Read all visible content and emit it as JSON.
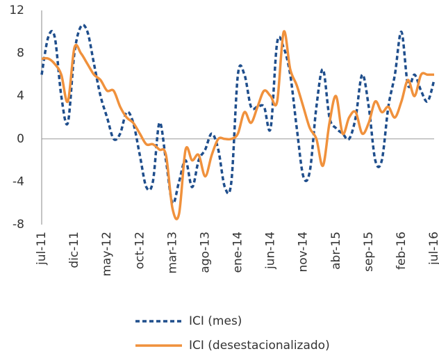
{
  "chart_data": {
    "type": "line",
    "categories": [
      "jul-11",
      null,
      null,
      null,
      null,
      "dic-11",
      null,
      null,
      null,
      null,
      "may-12",
      null,
      null,
      null,
      null,
      "oct-12",
      null,
      null,
      null,
      null,
      "mar-13",
      null,
      null,
      null,
      null,
      "ago-13",
      null,
      null,
      null,
      null,
      "ene-14",
      null,
      null,
      null,
      null,
      "jun-14",
      null,
      null,
      null,
      null,
      "nov-14",
      null,
      null,
      null,
      null,
      "abr-15",
      null,
      null,
      null,
      null,
      "sep-15",
      null,
      null,
      null,
      null,
      "feb-16",
      null,
      null,
      null,
      null,
      "jul-16"
    ],
    "series": [
      {
        "name": "ICI (mes)",
        "color": "#1f4e8c",
        "dashed": true,
        "values": [
          6,
          9.5,
          9.5,
          4,
          1.5,
          8,
          10.5,
          10,
          7,
          4,
          2,
          0,
          0.5,
          2.5,
          1.5,
          -1.5,
          -4.5,
          -4,
          1.5,
          -2,
          -6,
          -4,
          -2,
          -4.5,
          -2,
          -1,
          0.5,
          -1,
          -4.5,
          -4,
          6,
          6,
          3,
          3,
          3,
          1,
          9,
          8.5,
          6,
          1,
          -3.5,
          -3,
          3,
          6.5,
          2,
          1,
          0.5,
          0,
          2,
          6,
          3,
          -2,
          -2,
          3,
          6,
          10,
          5,
          6,
          4.5,
          3.5,
          5.5
        ]
      },
      {
        "name": "ICI (desestacionalizado)",
        "color": "#f0913c",
        "dashed": false,
        "values": [
          7.5,
          7.5,
          7,
          6,
          3.5,
          8.5,
          8,
          7,
          6,
          5.5,
          4.5,
          4.5,
          3,
          2,
          1.5,
          0.5,
          -0.5,
          -0.5,
          -1,
          -1.5,
          -6.5,
          -7,
          -1,
          -2,
          -1.5,
          -3.5,
          -1.5,
          0,
          0,
          0,
          0.5,
          2.5,
          1.5,
          3,
          4.5,
          4,
          3.5,
          10,
          6.5,
          5,
          3,
          1,
          0,
          -2.5,
          1.5,
          4,
          0.5,
          2,
          2.5,
          0.5,
          1.5,
          3.5,
          2.5,
          3,
          2,
          3.5,
          5.5,
          4,
          6,
          6,
          6
        ]
      }
    ],
    "ylim": [
      -8,
      12
    ],
    "yticks": [
      12,
      8,
      4,
      0,
      -4,
      -8
    ]
  }
}
